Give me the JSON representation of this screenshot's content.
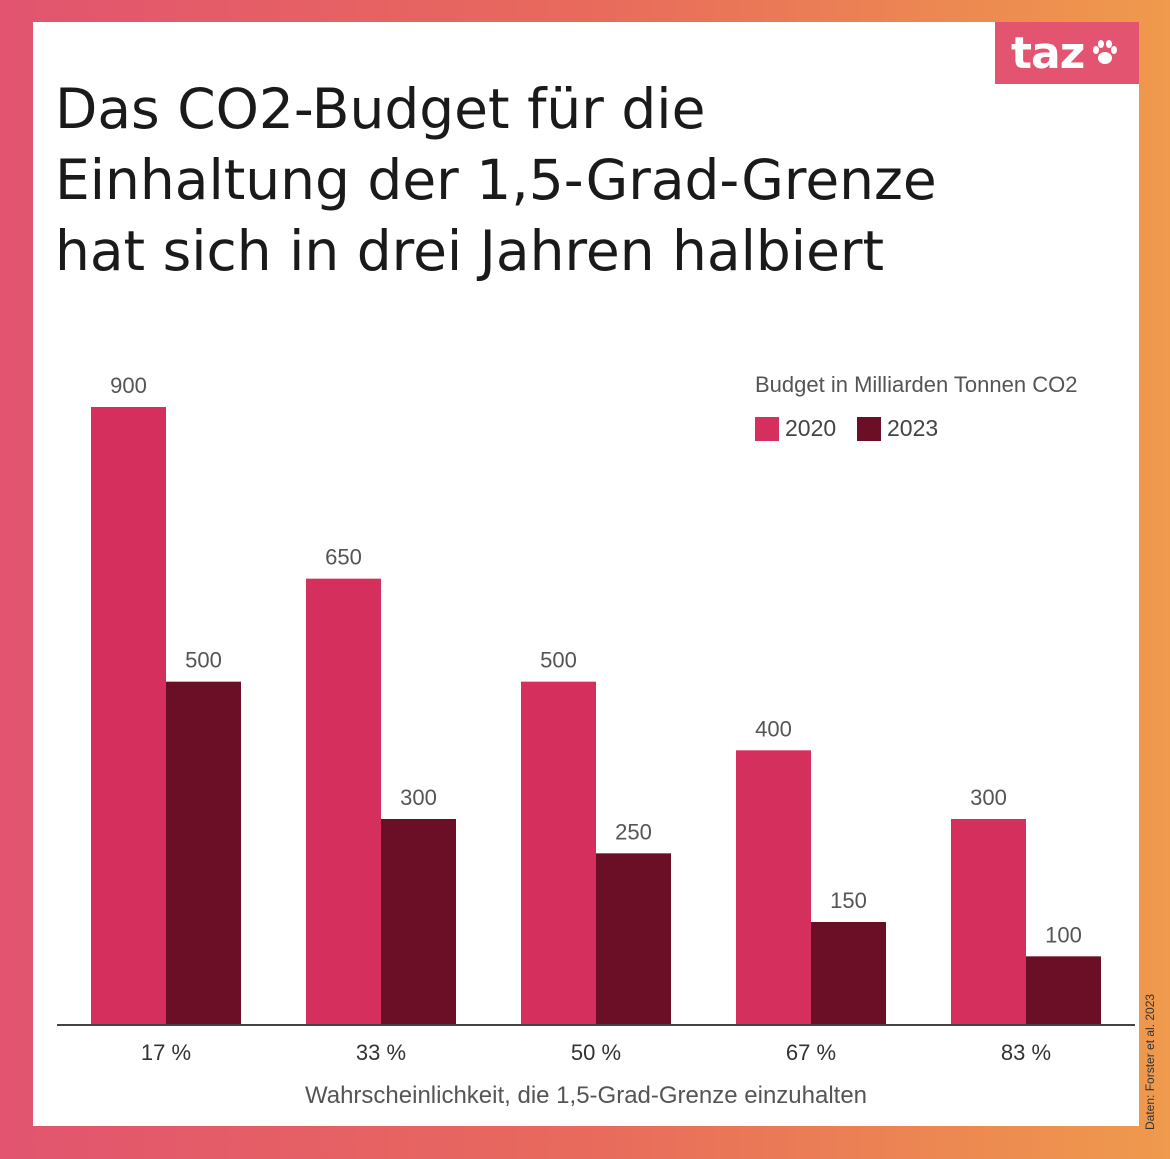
{
  "brand": {
    "logo_text": "taz"
  },
  "title_lines": [
    "Das CO2-Budget für die",
    "Einhaltung der 1,5-Grad-Grenze",
    "hat sich in drei Jahren halbiert"
  ],
  "source": "Daten: Forster et al. 2023",
  "colors": {
    "series_2020": "#d42f5d",
    "series_2023": "#6b0f27",
    "frame_gradient_start": "#e2546f",
    "frame_gradient_end": "#ef9a4c",
    "logo_bg": "#e2546f"
  },
  "chart_data": {
    "type": "bar",
    "title": "Das CO2-Budget für die Einhaltung der 1,5-Grad-Grenze hat sich in drei Jahren halbiert",
    "categories": [
      "17 %",
      "33 %",
      "50 %",
      "67 %",
      "83 %"
    ],
    "series": [
      {
        "name": "2020",
        "values": [
          900,
          650,
          500,
          400,
          300
        ]
      },
      {
        "name": "2023",
        "values": [
          500,
          300,
          250,
          150,
          100
        ]
      }
    ],
    "xlabel": "Wahrscheinlichkeit, die 1,5-Grad-Grenze einzuhalten",
    "ylabel": "",
    "legend_title": "Budget in Milliarden Tonnen CO2",
    "legend_position": "top-right",
    "ylim": [
      0,
      900
    ],
    "grid": false,
    "data_labels": true
  }
}
